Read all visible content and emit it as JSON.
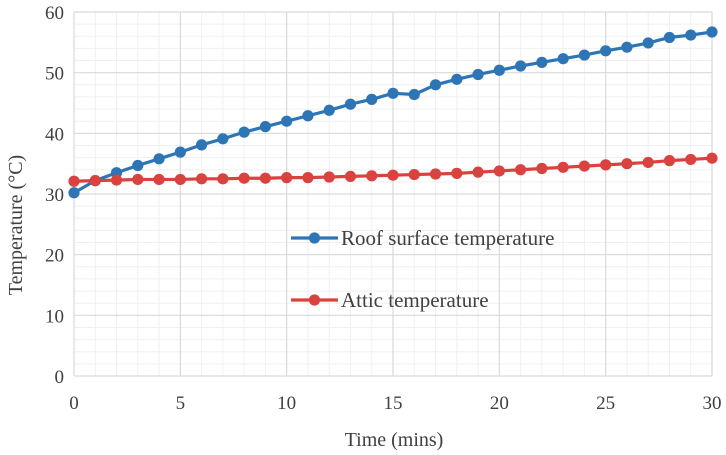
{
  "chart_data": {
    "type": "line",
    "xlabel": "Time (mins)",
    "ylabel": "Temperature (°C)",
    "xlim": [
      0,
      30
    ],
    "ylim": [
      0,
      60
    ],
    "xticks": [
      0,
      5,
      10,
      15,
      20,
      25,
      30
    ],
    "yticks": [
      0,
      10,
      20,
      30,
      40,
      50,
      60
    ],
    "grid": true,
    "legend_position": "center-right",
    "x": [
      0,
      1,
      2,
      3,
      4,
      5,
      6,
      7,
      8,
      9,
      10,
      11,
      12,
      13,
      14,
      15,
      16,
      17,
      18,
      19,
      20,
      21,
      22,
      23,
      24,
      25,
      26,
      27,
      28,
      29,
      30
    ],
    "series": [
      {
        "name": "Roof surface temperature",
        "color": "#2e75b6",
        "values": [
          30.2,
          32.2,
          33.5,
          34.7,
          35.8,
          36.9,
          38.1,
          39.1,
          40.2,
          41.1,
          42.0,
          42.9,
          43.8,
          44.8,
          45.6,
          46.6,
          46.4,
          48.0,
          48.9,
          49.7,
          50.4,
          51.1,
          51.7,
          52.3,
          52.9,
          53.6,
          54.2,
          54.9,
          55.8,
          56.2,
          56.7
        ]
      },
      {
        "name": "Attic temperature",
        "color": "#d9423f",
        "values": [
          32.1,
          32.2,
          32.3,
          32.4,
          32.4,
          32.4,
          32.5,
          32.5,
          32.6,
          32.6,
          32.7,
          32.7,
          32.8,
          32.9,
          33.0,
          33.1,
          33.2,
          33.3,
          33.4,
          33.6,
          33.8,
          34.0,
          34.2,
          34.4,
          34.6,
          34.8,
          35.0,
          35.2,
          35.5,
          35.7,
          35.9
        ]
      }
    ]
  }
}
